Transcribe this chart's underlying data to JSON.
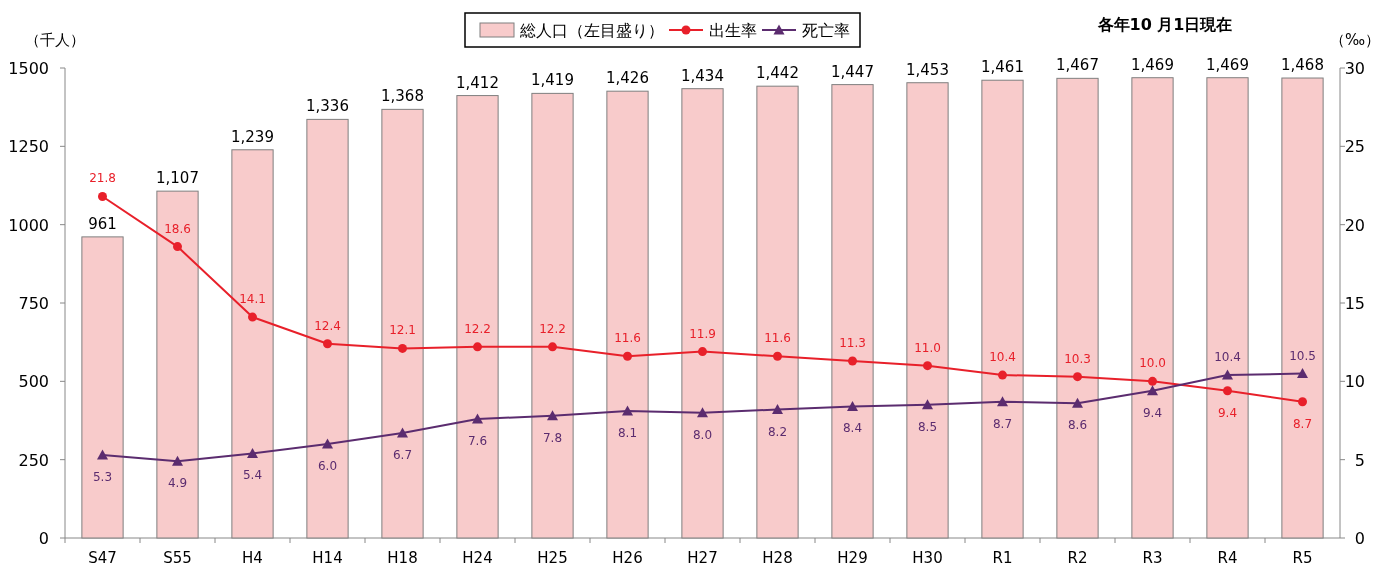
{
  "chart_data": {
    "type": "bar",
    "categories": [
      "S47",
      "S55",
      "H4",
      "H14",
      "H18",
      "H24",
      "H25",
      "H26",
      "H27",
      "H28",
      "H29",
      "H30",
      "R1",
      "R2",
      "R3",
      "R4",
      "R5"
    ],
    "series": [
      {
        "name": "総人口（左目盛り）",
        "color": "#f8cbcb",
        "values": [
          961,
          1107,
          1239,
          1336,
          1368,
          1412,
          1419,
          1426,
          1434,
          1442,
          1447,
          1453,
          1461,
          1467,
          1469,
          1469,
          1468
        ],
        "value_labels": [
          "961",
          "1,107",
          "1,239",
          "1,336",
          "1,368",
          "1,412",
          "1,419",
          "1,426",
          "1,434",
          "1,442",
          "1,447",
          "1,453",
          "1,461",
          "1,467",
          "1,469",
          "1,469",
          "1,468"
        ]
      },
      {
        "name": "出生率",
        "type": "line",
        "axis": "y2",
        "color": "#e8202a",
        "marker": "circle",
        "values": [
          21.8,
          18.6,
          14.1,
          12.4,
          12.1,
          12.2,
          12.2,
          11.6,
          11.9,
          11.6,
          11.3,
          11.0,
          10.4,
          10.3,
          10.0,
          9.4,
          8.7
        ],
        "value_labels": [
          "21.8",
          "18.6",
          "14.1",
          "12.4",
          "12.1",
          "12.2",
          "12.2",
          "11.6",
          "11.9",
          "11.6",
          "11.3",
          "11.0",
          "10.4",
          "10.3",
          "10.0",
          "9.4",
          "8.7"
        ]
      },
      {
        "name": "死亡率",
        "type": "line",
        "axis": "y2",
        "color": "#5b2c6f",
        "marker": "triangle",
        "values": [
          5.3,
          4.9,
          5.4,
          6.0,
          6.7,
          7.6,
          7.8,
          8.1,
          8.0,
          8.2,
          8.4,
          8.5,
          8.7,
          8.6,
          9.4,
          10.4,
          10.5
        ],
        "value_labels": [
          "5.3",
          "4.9",
          "5.4",
          "6.0",
          "6.7",
          "7.6",
          "7.8",
          "8.1",
          "8.0",
          "8.2",
          "8.4",
          "8.5",
          "8.7",
          "8.6",
          "9.4",
          "10.4",
          "10.5"
        ]
      }
    ],
    "ylabel": "（千人）",
    "y2label": "（‰）",
    "annotations": [
      "各年10 月1日現在"
    ],
    "ylim": [
      0,
      1500
    ],
    "yticks": [
      0,
      250,
      500,
      750,
      1000,
      1250,
      1500
    ],
    "y2lim": [
      0,
      30
    ],
    "y2ticks": [
      0,
      5,
      10,
      15,
      20,
      25,
      30
    ],
    "legend": "top",
    "grid": false
  }
}
